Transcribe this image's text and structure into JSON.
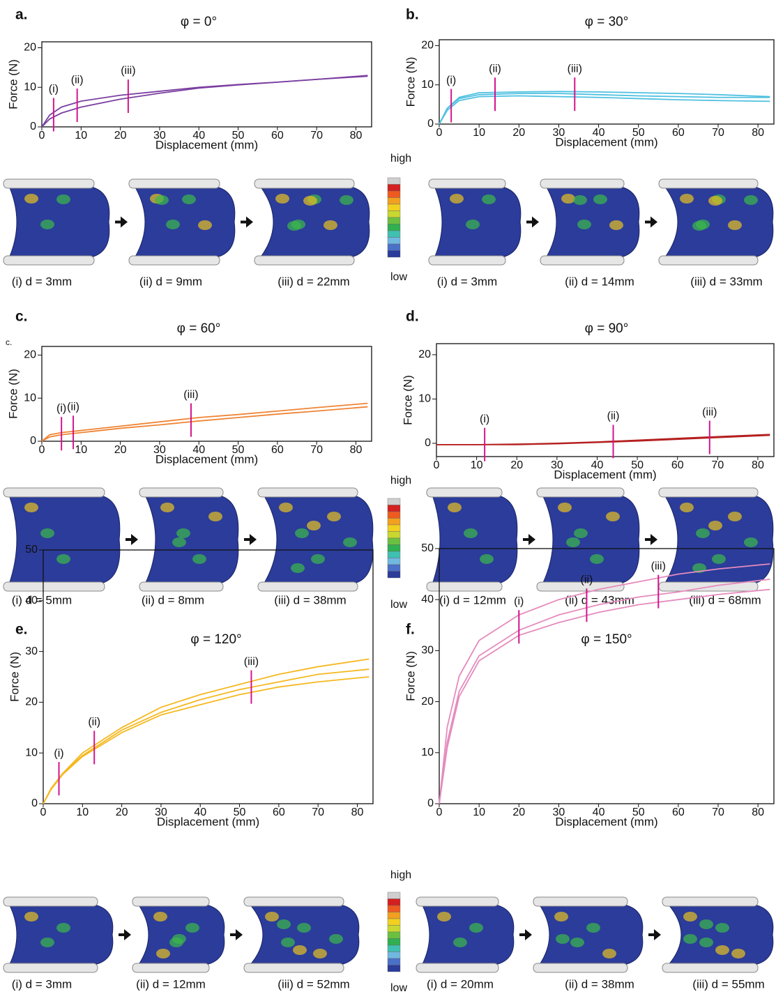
{
  "colorbar": {
    "high": "high",
    "low": "low"
  },
  "chart_data": [
    {
      "type": "line",
      "panel": "a.",
      "title": "φ = 0°",
      "x_label": "Displacement (mm)",
      "y_label": "Force (N)",
      "xlim": [
        0,
        84
      ],
      "ylim": [
        0,
        21.5
      ],
      "xticks": [
        0,
        10,
        20,
        30,
        40,
        50,
        60,
        70,
        80
      ],
      "yticks": [
        0,
        10,
        20
      ],
      "x": [
        0,
        2,
        5,
        10,
        20,
        30,
        40,
        50,
        60,
        70,
        83
      ],
      "color": "#7b3fa0",
      "series": [
        {
          "values": [
            0,
            3,
            5,
            6.5,
            8,
            9,
            10,
            10.7,
            11.3,
            12,
            13
          ]
        },
        {
          "values": [
            0,
            2,
            3.5,
            5,
            7,
            8.5,
            9.8,
            10.6,
            11.3,
            12,
            12.8
          ]
        }
      ],
      "markers": [
        {
          "label": "(i)",
          "x": 3
        },
        {
          "label": "(ii)",
          "x": 9
        },
        {
          "label": "(iii)",
          "x": 22
        }
      ],
      "captions": [
        "(i) d = 3mm",
        "(ii) d = 9mm",
        "(iii) d = 22mm"
      ]
    },
    {
      "type": "line",
      "panel": "b.",
      "title": "φ = 30°",
      "x_label": "Displacement (mm)",
      "y_label": "Force (N)",
      "xlim": [
        0,
        84
      ],
      "ylim": [
        0,
        21.5
      ],
      "xticks": [
        0,
        10,
        20,
        30,
        40,
        50,
        60,
        70,
        80
      ],
      "yticks": [
        0,
        10,
        20
      ],
      "x": [
        0,
        2,
        5,
        10,
        20,
        30,
        40,
        50,
        60,
        70,
        83
      ],
      "color": "#4fc0e0",
      "series": [
        {
          "values": [
            0,
            4,
            6.5,
            7.5,
            7.8,
            7.8,
            7.5,
            7.2,
            7,
            6.8,
            6.8
          ]
        },
        {
          "values": [
            0,
            3.5,
            6,
            7,
            7.2,
            7,
            6.8,
            6.5,
            6.2,
            6,
            5.8
          ]
        },
        {
          "values": [
            0,
            4,
            6.8,
            8,
            8.2,
            8.3,
            8.2,
            8,
            7.8,
            7.5,
            7
          ]
        }
      ],
      "markers": [
        {
          "label": "(i)",
          "x": 3
        },
        {
          "label": "(ii)",
          "x": 14
        },
        {
          "label": "(iii)",
          "x": 34
        }
      ],
      "captions": [
        "(i) d = 3mm",
        "(ii) d = 14mm",
        "(iii) d = 33mm"
      ]
    },
    {
      "type": "line",
      "panel": "c.",
      "note": "c.",
      "title": "φ = 60°",
      "x_label": "Displacement (mm)",
      "y_label": "Force (N)",
      "xlim": [
        0,
        84
      ],
      "ylim": [
        0,
        22
      ],
      "xticks": [
        0,
        10,
        20,
        30,
        40,
        50,
        60,
        70,
        80
      ],
      "yticks": [
        0,
        10,
        20
      ],
      "x": [
        0,
        2,
        5,
        10,
        20,
        30,
        40,
        50,
        60,
        70,
        83
      ],
      "color": "#ef8434",
      "series": [
        {
          "values": [
            0,
            1.5,
            2,
            2.5,
            3.5,
            4.5,
            5.5,
            6.2,
            7,
            7.8,
            8.8
          ]
        },
        {
          "values": [
            0,
            1,
            1.5,
            2,
            3,
            3.8,
            4.7,
            5.5,
            6.3,
            7,
            8
          ]
        }
      ],
      "markers": [
        {
          "label": "(i)",
          "x": 5
        },
        {
          "label": "(ii)",
          "x": 8
        },
        {
          "label": "(iii)",
          "x": 38
        }
      ],
      "captions": [
        "(i) d = 5mm",
        "(ii) d = 8mm",
        "(iii) d = 38mm"
      ]
    },
    {
      "type": "line",
      "panel": "d.",
      "title": "φ = 90°",
      "x_label": "Displacement (mm)",
      "y_label": "Force (N)",
      "xlim": [
        0,
        84
      ],
      "ylim": [
        -3,
        22.5
      ],
      "xticks": [
        0,
        10,
        20,
        30,
        40,
        50,
        60,
        70,
        80
      ],
      "yticks": [
        0,
        10,
        20
      ],
      "x": [
        0,
        2,
        5,
        10,
        20,
        30,
        40,
        50,
        60,
        70,
        83
      ],
      "color": "#b52020",
      "series": [
        {
          "values": [
            -0.3,
            -0.3,
            -0.3,
            -0.3,
            -0.3,
            -0.1,
            0.2,
            0.5,
            0.9,
            1.3,
            1.8
          ]
        },
        {
          "values": [
            -0.3,
            -0.3,
            -0.3,
            -0.3,
            -0.2,
            0,
            0.3,
            0.7,
            1.1,
            1.5,
            2
          ]
        }
      ],
      "markers": [
        {
          "label": "(i)",
          "x": 12
        },
        {
          "label": "(ii)",
          "x": 44
        },
        {
          "label": "(iii)",
          "x": 68
        }
      ],
      "captions": [
        "(i) d = 12mm",
        "(ii) d = 43mm",
        "(iii) d = 68mm"
      ]
    },
    {
      "type": "line",
      "panel": "e.",
      "title": "φ = 120°",
      "x_label": "Displacement (mm)",
      "y_label": "Force (N)",
      "xlim": [
        0,
        84
      ],
      "ylim": [
        0,
        50
      ],
      "xticks": [
        0,
        10,
        20,
        30,
        40,
        50,
        60,
        70,
        80
      ],
      "yticks": [
        0,
        10,
        20,
        30,
        40,
        50
      ],
      "x": [
        0,
        2,
        5,
        10,
        20,
        30,
        40,
        50,
        60,
        70,
        83
      ],
      "color": "#f5b820",
      "series": [
        {
          "values": [
            0,
            3,
            6,
            10,
            15,
            19,
            21.5,
            23.5,
            25.5,
            27,
            28.5
          ]
        },
        {
          "values": [
            0,
            3,
            6,
            9.5,
            14.5,
            18,
            20.5,
            22.5,
            24,
            25.5,
            26.5
          ]
        },
        {
          "values": [
            0,
            2.8,
            5.8,
            9.3,
            14,
            17.5,
            19.5,
            21.5,
            23,
            24,
            25
          ]
        }
      ],
      "markers": [
        {
          "label": "(i)",
          "x": 4
        },
        {
          "label": "(ii)",
          "x": 13
        },
        {
          "label": "(iii)",
          "x": 53
        }
      ],
      "captions": [
        "(i) d = 3mm",
        "(ii) d = 12mm",
        "(iii) d = 52mm"
      ]
    },
    {
      "type": "line",
      "panel": "f.",
      "title": "φ = 150°",
      "x_label": "Displacement (mm)",
      "y_label": "Force (N)",
      "xlim": [
        0,
        84
      ],
      "ylim": [
        0,
        50
      ],
      "xticks": [
        0,
        10,
        20,
        30,
        40,
        50,
        60,
        70,
        80
      ],
      "yticks": [
        0,
        10,
        20,
        30,
        40,
        50
      ],
      "x": [
        0,
        2,
        5,
        10,
        20,
        30,
        40,
        50,
        60,
        70,
        83
      ],
      "color": "#e58bbd",
      "series": [
        {
          "values": [
            0,
            15,
            25,
            32,
            37,
            40,
            42,
            43.5,
            45,
            46,
            47
          ]
        },
        {
          "values": [
            0,
            12,
            22,
            29,
            34,
            37,
            39,
            40.5,
            41.5,
            42.8,
            44
          ]
        },
        {
          "values": [
            0,
            11,
            21,
            28,
            33,
            35.5,
            37.5,
            39,
            40,
            41,
            42
          ]
        }
      ],
      "markers": [
        {
          "label": "(i)",
          "x": 20
        },
        {
          "label": "(ii)",
          "x": 37
        },
        {
          "label": "(iii)",
          "x": 55
        }
      ],
      "captions": [
        "(i) d = 20mm",
        "(ii) d = 38mm",
        "(iii) d = 55mm"
      ]
    }
  ]
}
